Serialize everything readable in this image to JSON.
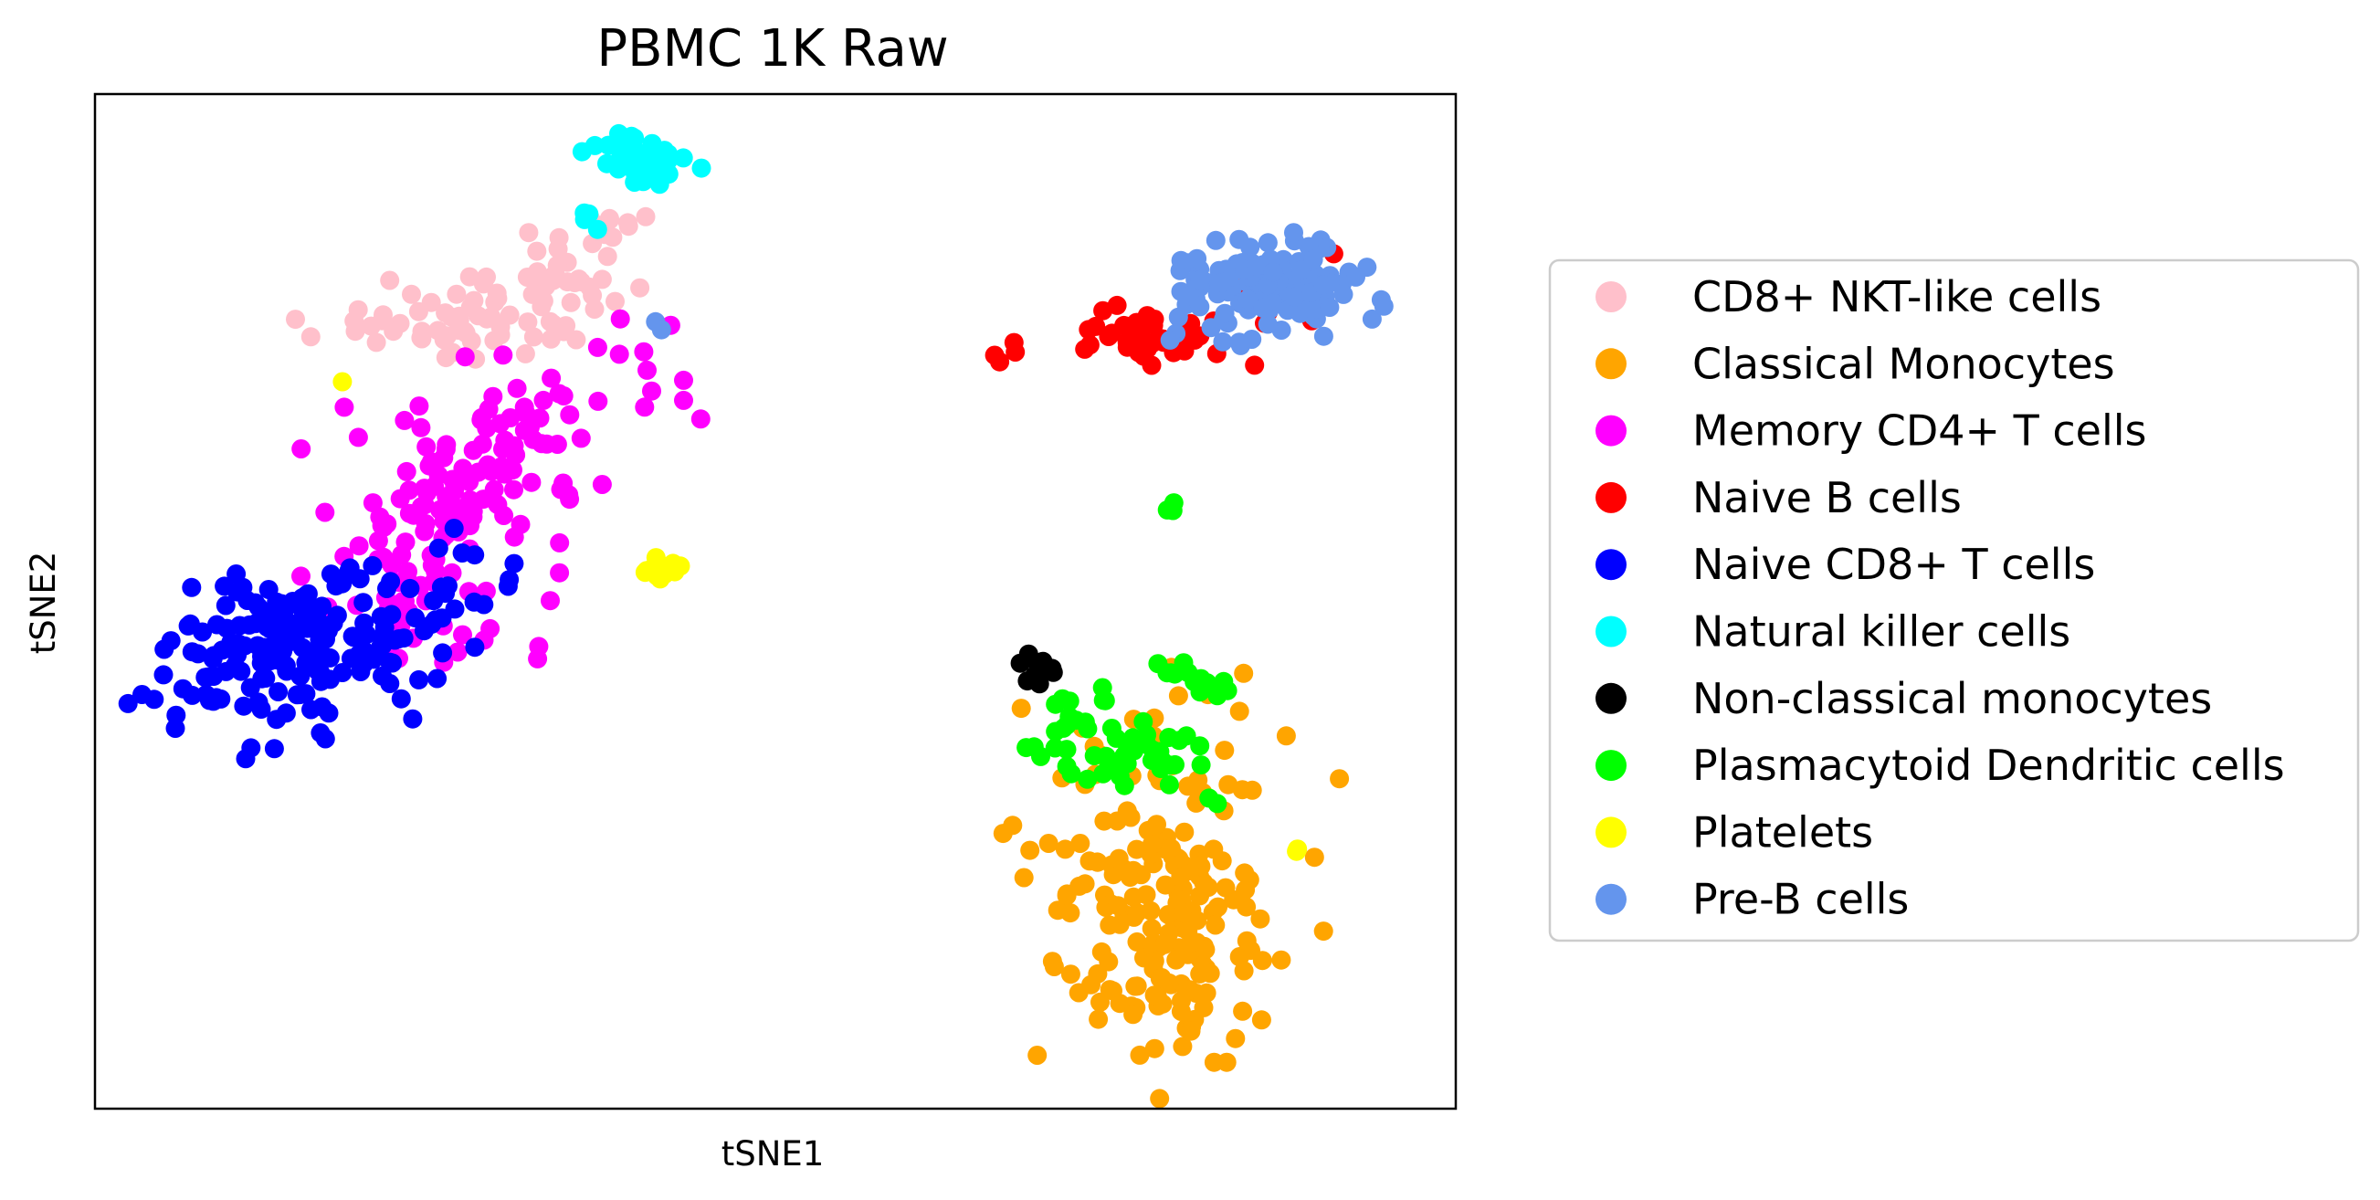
{
  "chart_data": {
    "type": "scatter",
    "title": "PBMC 1K Raw",
    "xlabel": "tSNE1",
    "ylabel": "tSNE2",
    "xlim": [
      0,
      100
    ],
    "ylim": [
      0,
      100
    ],
    "ticks": "none",
    "grid": false,
    "legend_position": "right",
    "series": [
      {
        "name": "CD8+ NKT-like cells",
        "color": "#FFC0CB",
        "clusters": [
          {
            "cx": 27,
            "cy": 78,
            "sx": 4.2,
            "sy": 1.8,
            "n": 55
          },
          {
            "cx": 34,
            "cy": 81.5,
            "sx": 2.2,
            "sy": 2.5,
            "n": 35
          },
          {
            "cx": 38,
            "cy": 87,
            "sx": 2.0,
            "sy": 1.2,
            "n": 10
          }
        ]
      },
      {
        "name": "Classical Monocytes",
        "color": "#FFA500",
        "clusters": [
          {
            "cx": 77.5,
            "cy": 22,
            "sx": 4.5,
            "sy": 8.5,
            "n": 170
          },
          {
            "cx": 81,
            "cy": 13,
            "sx": 3.5,
            "sy": 3.5,
            "n": 40
          }
        ]
      },
      {
        "name": "Memory CD4+ T cells",
        "color": "#FF00FF",
        "clusters": [
          {
            "cx": 25,
            "cy": 58,
            "sx": 3.8,
            "sy": 5.0,
            "n": 90
          },
          {
            "cx": 31.5,
            "cy": 66,
            "sx": 3.2,
            "sy": 3.5,
            "n": 40
          },
          {
            "cx": 22,
            "cy": 48,
            "sx": 3.0,
            "sy": 3.0,
            "n": 25
          },
          {
            "cx": 40,
            "cy": 73,
            "sx": 1.8,
            "sy": 3.0,
            "n": 12
          }
        ]
      },
      {
        "name": "Naive B cells",
        "color": "#FF0000",
        "clusters": [
          {
            "cx": 78,
            "cy": 76,
            "sx": 2.6,
            "sy": 1.3,
            "n": 45
          },
          {
            "cx": 67.2,
            "cy": 74.7,
            "sx": 0.5,
            "sy": 0.6,
            "n": 4
          },
          {
            "cx": 87,
            "cy": 80.5,
            "sx": 2.0,
            "sy": 2.0,
            "n": 12
          }
        ]
      },
      {
        "name": "Naive CD8+ T cells",
        "color": "#0000FF",
        "clusters": [
          {
            "cx": 13,
            "cy": 45,
            "sx": 4.2,
            "sy": 3.6,
            "n": 140
          },
          {
            "cx": 21,
            "cy": 47,
            "sx": 3.2,
            "sy": 3.2,
            "n": 45
          },
          {
            "cx": 27,
            "cy": 52,
            "sx": 3.0,
            "sy": 3.0,
            "n": 15
          }
        ]
      },
      {
        "name": "Natural killer  cells",
        "color": "#00FFFF",
        "clusters": [
          {
            "cx": 39.5,
            "cy": 93.5,
            "sx": 1.7,
            "sy": 1.1,
            "n": 50
          },
          {
            "cx": 36,
            "cy": 87.5,
            "sx": 0.6,
            "sy": 0.8,
            "n": 4
          }
        ]
      },
      {
        "name": "Non-classical monocytes",
        "color": "#000000",
        "clusters": [
          {
            "cx": 69.5,
            "cy": 43.5,
            "sx": 0.8,
            "sy": 0.7,
            "n": 12
          }
        ]
      },
      {
        "name": "Plasmacytoid Dendritic cells",
        "color": "#00FF00",
        "clusters": [
          {
            "cx": 75,
            "cy": 35,
            "sx": 3.3,
            "sy": 1.7,
            "n": 45
          },
          {
            "cx": 80.5,
            "cy": 42,
            "sx": 2.0,
            "sy": 1.0,
            "n": 14
          },
          {
            "cx": 72.5,
            "cy": 40,
            "sx": 1.0,
            "sy": 1.3,
            "n": 8
          },
          {
            "cx": 79,
            "cy": 59,
            "sx": 0.2,
            "sy": 0.3,
            "n": 3
          },
          {
            "cx": 82.5,
            "cy": 30.5,
            "sx": 0.5,
            "sy": 0.5,
            "n": 2
          }
        ]
      },
      {
        "name": "Platelets",
        "color": "#FFFF00",
        "clusters": [
          {
            "cx": 41.5,
            "cy": 53.2,
            "sx": 1.0,
            "sy": 0.5,
            "n": 16
          },
          {
            "cx": 88.5,
            "cy": 25.8,
            "sx": 0.4,
            "sy": 0.3,
            "n": 2
          },
          {
            "cx": 18.5,
            "cy": 71.5,
            "sx": 0.2,
            "sy": 0.2,
            "n": 1
          }
        ]
      },
      {
        "name": "Pre-B cells",
        "color": "#6495ED",
        "clusters": [
          {
            "cx": 86,
            "cy": 81,
            "sx": 3.6,
            "sy": 2.5,
            "n": 130
          },
          {
            "cx": 41.5,
            "cy": 76.5,
            "sx": 0.6,
            "sy": 1.2,
            "n": 2
          }
        ]
      }
    ]
  }
}
